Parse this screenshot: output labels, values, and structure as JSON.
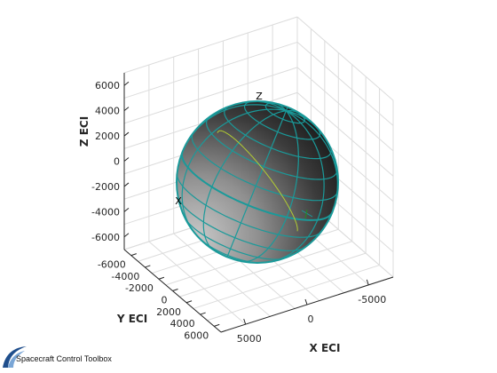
{
  "chart_data": {
    "type": "3d-orbit-plot",
    "title": "",
    "axes": {
      "x": {
        "label": "X ECI",
        "ticks": [
          5000,
          0,
          -5000
        ],
        "tick_labels": [
          "5000",
          "0",
          "-5000"
        ],
        "lim": [
          -7000,
          7000
        ]
      },
      "y": {
        "label": "Y ECI",
        "ticks": [
          -6000,
          -4000,
          -2000,
          0,
          2000,
          4000,
          6000
        ],
        "tick_labels": [
          "-6000",
          "-4000",
          "-2000",
          "0",
          "2000",
          "4000",
          "6000"
        ],
        "lim": [
          -7000,
          7000
        ]
      },
      "z": {
        "label": "Z ECI",
        "ticks": [
          6000,
          4000,
          2000,
          0,
          -2000,
          -4000,
          -6000
        ],
        "tick_labels": [
          "6000",
          "4000",
          "2000",
          "0",
          "-2000",
          "-4000",
          "-6000"
        ],
        "lim": [
          -7000,
          7000
        ]
      }
    },
    "grid": true,
    "globe": {
      "name": "Earth",
      "radius_km": 6378,
      "grid_color": "#1a9a9a"
    },
    "orbit": {
      "color": "#b2cc33",
      "radius_km": 7000
    },
    "frame_labels": [
      "Z",
      "X"
    ],
    "colors": {
      "axis_line": "#262626",
      "grid": "#dcdcdc",
      "orbit": "#b2cc33",
      "globe_grid": "#1a9a9a"
    }
  },
  "branding": {
    "text": "Spacecraft Control Toolbox",
    "icon": "swoosh-logo-icon",
    "colors": [
      "#1f4e8c",
      "#7aa6d6"
    ]
  }
}
